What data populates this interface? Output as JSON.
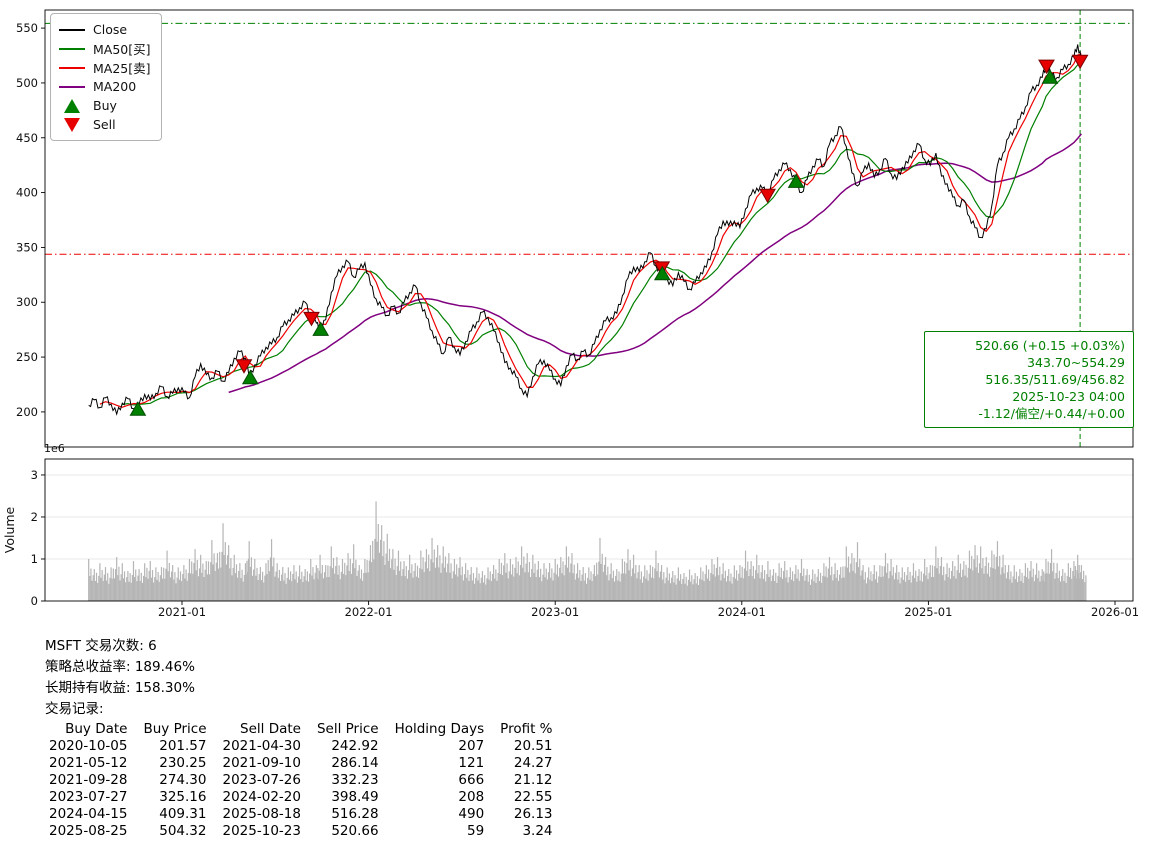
{
  "legend": {
    "close": "Close",
    "ma50": "MA50[买]",
    "ma25": "MA25[卖]",
    "ma200": "MA200",
    "buy": "Buy",
    "sell": "Sell"
  },
  "annotation": {
    "lines": [
      "520.66 (+0.15 +0.03%)",
      "343.70~554.29",
      "516.35/511.69/456.82",
      "2025-10-23 04:00",
      "-1.12/偏空/+0.44/+0.00"
    ]
  },
  "stats": {
    "line1": "MSFT 交易次数: 6",
    "line2": "策略总收益率: 189.46%",
    "line3": "长期持有收益: 158.30%",
    "line4": "交易记录:"
  },
  "trade_table": {
    "headers": [
      "Buy Date",
      "Buy Price",
      "Sell Date",
      "Sell Price",
      "Holding Days",
      "Profit %"
    ],
    "rows": [
      [
        "2020-10-05",
        "201.57",
        "2021-04-30",
        "242.92",
        "207",
        "20.51"
      ],
      [
        "2021-05-12",
        "230.25",
        "2021-09-10",
        "286.14",
        "121",
        "24.27"
      ],
      [
        "2021-09-28",
        "274.30",
        "2023-07-26",
        "332.23",
        "666",
        "21.12"
      ],
      [
        "2023-07-27",
        "325.16",
        "2024-02-20",
        "398.49",
        "208",
        "22.55"
      ],
      [
        "2024-04-15",
        "409.31",
        "2025-08-18",
        "516.28",
        "490",
        "26.13"
      ],
      [
        "2025-08-25",
        "504.32",
        "2025-10-23",
        "520.66",
        "59",
        "3.24"
      ]
    ]
  },
  "chart_data": {
    "type": "line",
    "title": "",
    "symbol": "MSFT",
    "xlabel": "",
    "ylabel": "Volume",
    "series_legend": [
      "Close",
      "MA50[买]",
      "MA25[卖]",
      "MA200",
      "Buy",
      "Sell"
    ],
    "price_axis": {
      "ticks": [
        200,
        250,
        300,
        350,
        400,
        450,
        500,
        550
      ],
      "range": [
        168,
        566.5
      ]
    },
    "volume_axis": {
      "ticks": [
        0,
        1,
        2,
        3
      ],
      "offset_label": "1e6",
      "ylabel": "Volume",
      "range": [
        0,
        3.38
      ]
    },
    "x_axis": {
      "ticks": [
        {
          "label": "2021-01",
          "t": 2021.0
        },
        {
          "label": "2022-01",
          "t": 2022.0
        },
        {
          "label": "2023-01",
          "t": 2023.0
        },
        {
          "label": "2024-01",
          "t": 2024.0
        },
        {
          "label": "2025-01",
          "t": 2025.0
        },
        {
          "label": "2026-01",
          "t": 2026.0
        }
      ],
      "range": [
        2020.27,
        2026.1
      ]
    },
    "colors": {
      "close": "#000000",
      "ma50": "#008000",
      "ma25": "#ee0000",
      "ma200": "#800080",
      "buy": "#008000",
      "sell": "#e60000",
      "volume": "#b5b5b5",
      "hline_upper": "#008000",
      "hline_lower": "#ee0000",
      "vline": "#008000",
      "annotation": "#008000"
    },
    "hlines": [
      {
        "value": 554.29,
        "style": "dashdot",
        "color": "#008000"
      },
      {
        "value": 343.7,
        "style": "dashdot",
        "color": "#ee0000"
      }
    ],
    "vline": {
      "date": "2025-10-23",
      "style": "dashed",
      "color": "#008000"
    },
    "ma_windows": {
      "ma25": 3,
      "ma50": 7,
      "ma200": 26
    },
    "points": [
      [
        2020.5,
        206,
        1.0
      ],
      [
        2020.53,
        211,
        0.8
      ],
      [
        2020.56,
        204,
        0.9
      ],
      [
        2020.59,
        213,
        0.85
      ],
      [
        2020.62,
        207,
        0.8
      ],
      [
        2020.65,
        198,
        1.1
      ],
      [
        2020.68,
        208,
        0.9
      ],
      [
        2020.71,
        212,
        0.75
      ],
      [
        2020.74,
        203,
        0.95
      ],
      [
        2020.77,
        207,
        0.8
      ],
      [
        2020.8,
        216,
        0.9
      ],
      [
        2020.83,
        211,
        1.0
      ],
      [
        2020.86,
        217,
        0.8
      ],
      [
        2020.89,
        223,
        0.85
      ],
      [
        2020.92,
        214,
        1.2
      ],
      [
        2020.95,
        217,
        0.9
      ],
      [
        2020.98,
        222,
        0.8
      ],
      [
        2021.01,
        218,
        0.9
      ],
      [
        2021.04,
        213,
        1.0
      ],
      [
        2021.07,
        232,
        1.3
      ],
      [
        2021.1,
        244,
        1.1
      ],
      [
        2021.13,
        234,
        1.0
      ],
      [
        2021.16,
        231,
        1.45
      ],
      [
        2021.19,
        237,
        1.2
      ],
      [
        2021.22,
        228,
        1.85
      ],
      [
        2021.25,
        236,
        1.4
      ],
      [
        2021.28,
        249,
        1.1
      ],
      [
        2021.31,
        255,
        0.95
      ],
      [
        2021.34,
        249,
        0.9
      ],
      [
        2021.36,
        231,
        1.5
      ],
      [
        2021.39,
        243,
        1.0
      ],
      [
        2021.42,
        251,
        0.85
      ],
      [
        2021.45,
        259,
        0.9
      ],
      [
        2021.48,
        262,
        1.55
      ],
      [
        2021.51,
        268,
        0.9
      ],
      [
        2021.54,
        278,
        0.85
      ],
      [
        2021.57,
        284,
        0.8
      ],
      [
        2021.6,
        288,
        0.9
      ],
      [
        2021.63,
        295,
        0.85
      ],
      [
        2021.66,
        300,
        0.8
      ],
      [
        2021.69,
        286,
        1.0
      ],
      [
        2021.72,
        281,
        0.9
      ],
      [
        2021.74,
        274,
        1.1
      ],
      [
        2021.77,
        284,
        0.9
      ],
      [
        2021.8,
        309,
        1.3
      ],
      [
        2021.83,
        324,
        1.1
      ],
      [
        2021.86,
        333,
        1.0
      ],
      [
        2021.89,
        337,
        1.2
      ],
      [
        2021.92,
        323,
        1.35
      ],
      [
        2021.95,
        330,
        0.9
      ],
      [
        2021.98,
        336,
        1.0
      ],
      [
        2022.01,
        316,
        1.4
      ],
      [
        2022.04,
        303,
        2.37
      ],
      [
        2022.07,
        295,
        1.9
      ],
      [
        2022.1,
        288,
        1.6
      ],
      [
        2022.13,
        296,
        1.3
      ],
      [
        2022.16,
        290,
        1.2
      ],
      [
        2022.19,
        300,
        1.0
      ],
      [
        2022.22,
        309,
        1.1
      ],
      [
        2022.25,
        315,
        0.95
      ],
      [
        2022.28,
        299,
        1.2
      ],
      [
        2022.31,
        286,
        1.3
      ],
      [
        2022.34,
        274,
        1.5
      ],
      [
        2022.37,
        262,
        1.4
      ],
      [
        2022.4,
        253,
        1.3
      ],
      [
        2022.43,
        268,
        1.2
      ],
      [
        2022.46,
        259,
        1.0
      ],
      [
        2022.49,
        252,
        1.1
      ],
      [
        2022.52,
        264,
        0.9
      ],
      [
        2022.55,
        274,
        0.85
      ],
      [
        2022.58,
        282,
        0.8
      ],
      [
        2022.61,
        291,
        0.75
      ],
      [
        2022.64,
        286,
        0.8
      ],
      [
        2022.67,
        274,
        0.9
      ],
      [
        2022.7,
        263,
        1.0
      ],
      [
        2022.73,
        245,
        1.2
      ],
      [
        2022.76,
        240,
        1.0
      ],
      [
        2022.79,
        232,
        1.1
      ],
      [
        2022.82,
        221,
        1.3
      ],
      [
        2022.85,
        214,
        1.2
      ],
      [
        2022.88,
        232,
        1.1
      ],
      [
        2022.91,
        244,
        1.0
      ],
      [
        2022.94,
        247,
        0.9
      ],
      [
        2022.97,
        238,
        0.95
      ],
      [
        2023.0,
        230,
        1.0
      ],
      [
        2023.03,
        224,
        1.1
      ],
      [
        2023.06,
        242,
        1.3
      ],
      [
        2023.09,
        252,
        1.2
      ],
      [
        2023.12,
        248,
        0.9
      ],
      [
        2023.15,
        255,
        0.85
      ],
      [
        2023.18,
        252,
        0.8
      ],
      [
        2023.21,
        262,
        0.9
      ],
      [
        2023.24,
        275,
        1.5
      ],
      [
        2023.27,
        283,
        1.1
      ],
      [
        2023.3,
        286,
        0.9
      ],
      [
        2023.33,
        290,
        0.8
      ],
      [
        2023.36,
        306,
        1.0
      ],
      [
        2023.39,
        322,
        1.3
      ],
      [
        2023.42,
        332,
        1.1
      ],
      [
        2023.45,
        328,
        0.9
      ],
      [
        2023.48,
        337,
        0.85
      ],
      [
        2023.51,
        345,
        0.9
      ],
      [
        2023.54,
        333,
        1.2
      ],
      [
        2023.57,
        328,
        0.9
      ],
      [
        2023.6,
        321,
        0.8
      ],
      [
        2023.63,
        315,
        0.75
      ],
      [
        2023.66,
        327,
        0.8
      ],
      [
        2023.69,
        319,
        0.7
      ],
      [
        2023.72,
        312,
        0.75
      ],
      [
        2023.75,
        318,
        0.7
      ],
      [
        2023.78,
        327,
        0.8
      ],
      [
        2023.81,
        332,
        0.9
      ],
      [
        2023.84,
        346,
        1.0
      ],
      [
        2023.87,
        362,
        1.1
      ],
      [
        2023.9,
        374,
        0.9
      ],
      [
        2023.93,
        370,
        0.8
      ],
      [
        2023.96,
        374,
        0.85
      ],
      [
        2023.99,
        368,
        0.9
      ],
      [
        2024.02,
        385,
        1.2
      ],
      [
        2024.05,
        398,
        1.0
      ],
      [
        2024.08,
        404,
        1.1
      ],
      [
        2024.11,
        404,
        0.9
      ],
      [
        2024.14,
        399,
        0.95
      ],
      [
        2024.17,
        412,
        0.8
      ],
      [
        2024.2,
        421,
        0.9
      ],
      [
        2024.23,
        426,
        1.0
      ],
      [
        2024.26,
        421,
        0.8
      ],
      [
        2024.29,
        409,
        0.9
      ],
      [
        2024.32,
        400,
        1.0
      ],
      [
        2024.35,
        412,
        0.8
      ],
      [
        2024.38,
        424,
        0.75
      ],
      [
        2024.41,
        430,
        0.8
      ],
      [
        2024.44,
        424,
        0.9
      ],
      [
        2024.47,
        444,
        1.1
      ],
      [
        2024.5,
        452,
        0.9
      ],
      [
        2024.53,
        460,
        0.85
      ],
      [
        2024.56,
        442,
        1.3
      ],
      [
        2024.59,
        418,
        1.2
      ],
      [
        2024.62,
        406,
        1.4
      ],
      [
        2024.65,
        419,
        0.9
      ],
      [
        2024.68,
        427,
        0.8
      ],
      [
        2024.71,
        414,
        0.9
      ],
      [
        2024.74,
        421,
        0.85
      ],
      [
        2024.77,
        431,
        1.2
      ],
      [
        2024.8,
        417,
        1.0
      ],
      [
        2024.83,
        412,
        0.9
      ],
      [
        2024.86,
        423,
        0.8
      ],
      [
        2024.89,
        427,
        0.85
      ],
      [
        2024.92,
        438,
        0.9
      ],
      [
        2024.95,
        444,
        0.8
      ],
      [
        2024.98,
        430,
        1.0
      ],
      [
        2025.01,
        425,
        0.9
      ],
      [
        2025.04,
        436,
        1.3
      ],
      [
        2025.07,
        415,
        1.1
      ],
      [
        2025.1,
        408,
        0.9
      ],
      [
        2025.13,
        396,
        1.0
      ],
      [
        2025.16,
        388,
        1.1
      ],
      [
        2025.19,
        393,
        1.0
      ],
      [
        2025.22,
        378,
        1.2
      ],
      [
        2025.25,
        368,
        1.4
      ],
      [
        2025.28,
        359,
        1.3
      ],
      [
        2025.31,
        367,
        1.1
      ],
      [
        2025.34,
        388,
        1.2
      ],
      [
        2025.37,
        425,
        1.5
      ],
      [
        2025.4,
        436,
        1.1
      ],
      [
        2025.43,
        450,
        0.9
      ],
      [
        2025.46,
        458,
        0.85
      ],
      [
        2025.49,
        467,
        0.8
      ],
      [
        2025.52,
        478,
        0.9
      ],
      [
        2025.55,
        492,
        1.0
      ],
      [
        2025.58,
        498,
        0.9
      ],
      [
        2025.61,
        505,
        0.8
      ],
      [
        2025.63,
        516,
        1.0
      ],
      [
        2025.66,
        507,
        1.3
      ],
      [
        2025.69,
        505,
        0.9
      ],
      [
        2025.72,
        512,
        0.8
      ],
      [
        2025.75,
        517,
        0.9
      ],
      [
        2025.78,
        524,
        1.0
      ],
      [
        2025.8,
        535,
        1.1
      ],
      [
        2025.82,
        521,
        0.9
      ]
    ]
  }
}
